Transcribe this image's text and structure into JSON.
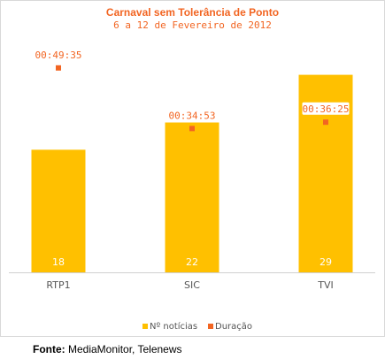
{
  "chart_data": {
    "type": "bar",
    "title": "Carnaval sem Tolerância de Ponto",
    "subtitle": "6 a 12 de Fevereiro de 2012",
    "categories": [
      "RTP1",
      "SIC",
      "TVI"
    ],
    "series": [
      {
        "name": "Nº notícias",
        "values": [
          18,
          22,
          29
        ],
        "color": "#ffc000"
      },
      {
        "name": "Duração",
        "values": [
          "00:49:35",
          "00:34:53",
          "00:36:25"
        ],
        "seconds": [
          2975,
          2093,
          2185
        ],
        "color": "#f26522"
      }
    ],
    "bar_ylim": [
      0,
      34.4
    ],
    "duration_ylim_seconds": [
      0,
      3410
    ],
    "legend_position": "bottom-center",
    "grid": false
  },
  "source": {
    "label": "Fonte:",
    "text": "MediaMonitor, Telenews"
  }
}
